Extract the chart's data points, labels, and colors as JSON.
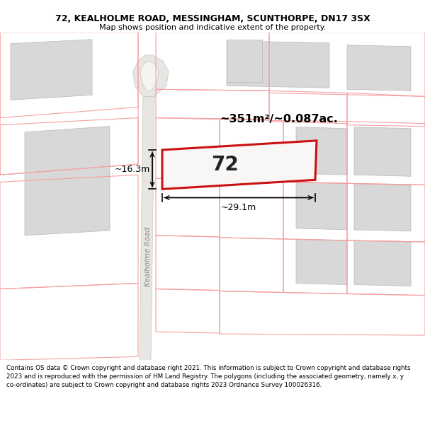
{
  "title_line1": "72, KEALHOLME ROAD, MESSINGHAM, SCUNTHORPE, DN17 3SX",
  "title_line2": "Map shows position and indicative extent of the property.",
  "area_text": "~351m²/~0.087ac.",
  "plot_number": "72",
  "dim_width": "~29.1m",
  "dim_height": "~16.3m",
  "road_label": "Kealholme Road",
  "footer_text": "Contains OS data © Crown copyright and database right 2021. This information is subject to Crown copyright and database rights 2023 and is reproduced with the permission of HM Land Registry. The polygons (including the associated geometry, namely x, y co-ordinates) are subject to Crown copyright and database rights 2023 Ordnance Survey 100026316.",
  "bg_color": "#ffffff",
  "map_bg": "#f5f4f2",
  "plot_edge": "#cc1111",
  "neighbor_edge": "#f5a0a0",
  "building_fill": "#d8d8d8",
  "building_edge": "#b8b8b8",
  "road_fill": "#e8e6e3",
  "road_edge": "#c8c6c3",
  "dim_color": "#000000",
  "title_color": "#000000",
  "footer_color": "#000000"
}
